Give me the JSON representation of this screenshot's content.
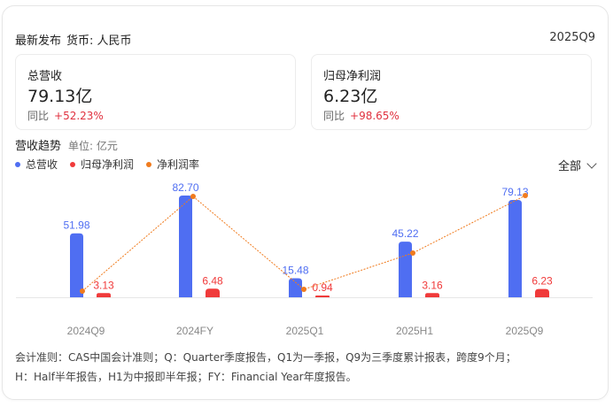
{
  "header": {
    "title": "最新发布",
    "currency": "货币: 人民币",
    "period": "2025Q9"
  },
  "kpis": [
    {
      "title": "总营收",
      "value": "79.13亿",
      "yoy_label": "同比",
      "yoy_value": "+52.23%"
    },
    {
      "title": "归母净利润",
      "value": "6.23亿",
      "yoy_label": "同比",
      "yoy_value": "+98.65%"
    }
  ],
  "trend": {
    "title": "营收趋势",
    "unit": "单位: 亿元",
    "filter_label": "全部",
    "legend": [
      {
        "label": "总营收",
        "color": "#4f6ef2"
      },
      {
        "label": "归母净利润",
        "color": "#f03a3a"
      },
      {
        "label": "净利润率",
        "color": "#f07b1e"
      }
    ]
  },
  "colors": {
    "revenue": "#4f6ef2",
    "profit": "#f03a3a",
    "margin": "#f07b1e",
    "positive": "#e0313f"
  },
  "chart_data": {
    "type": "bar",
    "title": "营收趋势",
    "ylabel": "单位: 亿元",
    "categories": [
      "2024Q9",
      "2024FY",
      "2025Q1",
      "2025H1",
      "2025Q9"
    ],
    "series": [
      {
        "name": "总营收",
        "type": "bar",
        "values": [
          51.98,
          82.7,
          15.48,
          45.22,
          79.13
        ]
      },
      {
        "name": "归母净利润",
        "type": "bar",
        "values": [
          3.13,
          6.48,
          0.94,
          3.16,
          6.23
        ]
      },
      {
        "name": "净利润率",
        "type": "line",
        "values": [
          6.02,
          7.84,
          6.07,
          6.99,
          7.87
        ],
        "note": "secondary axis, no labels shown"
      }
    ],
    "legend_position": "top-left",
    "grid": false
  },
  "note": {
    "line1": "会计准则：CAS中国会计准则；Q：Quarter季度报告，Q1为一季报，Q9为三季度累计报表，跨度9个月；",
    "line2": "H：Half半年报告，H1为中报即半年报；FY：Financial Year年度报告。"
  }
}
